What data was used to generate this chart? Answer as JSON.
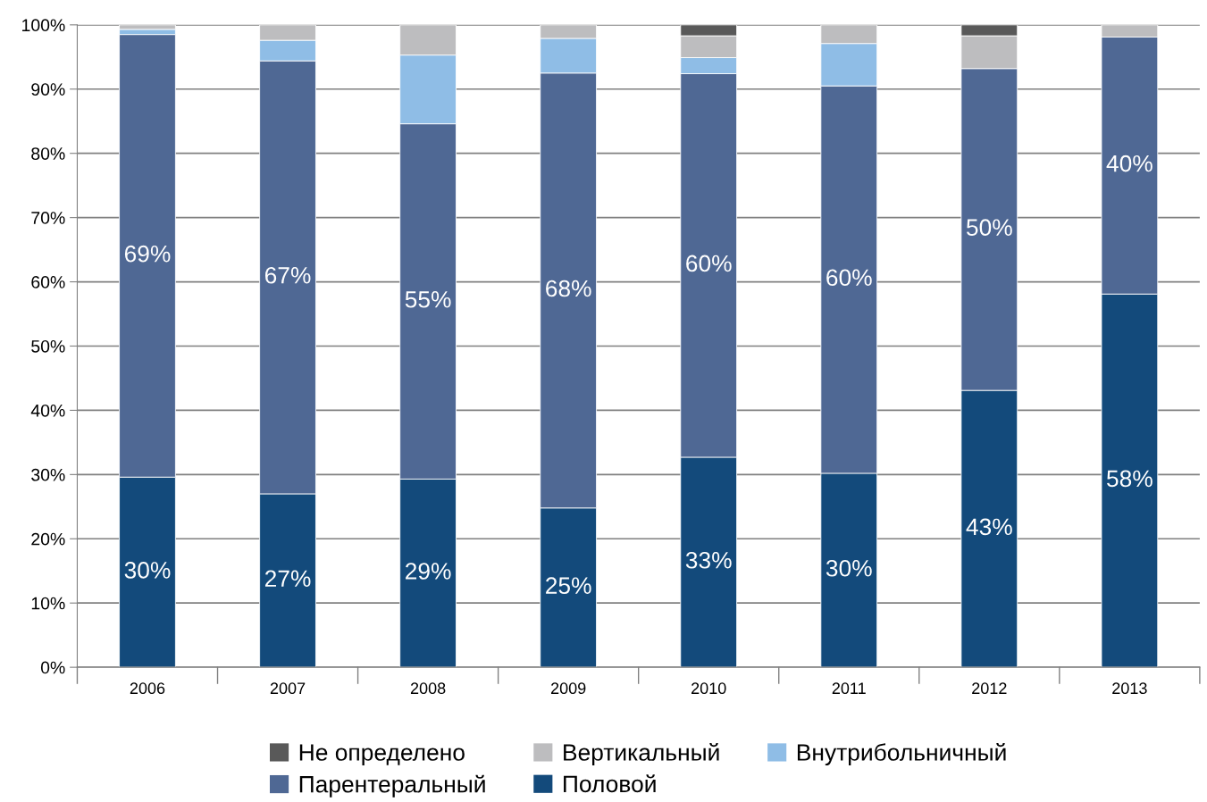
{
  "chart_data": {
    "type": "bar",
    "stacked": true,
    "categories": [
      "2006",
      "2007",
      "2008",
      "2009",
      "2010",
      "2011",
      "2012",
      "2013"
    ],
    "series": [
      {
        "name": "Половой",
        "color": "#134a7b",
        "values": [
          29.6,
          27.0,
          29.3,
          24.8,
          32.7,
          30.2,
          43.1,
          58.1
        ],
        "value_labels": [
          "30%",
          "27%",
          "29%",
          "25%",
          "33%",
          "30%",
          "43%",
          "58%"
        ]
      },
      {
        "name": "Парентеральный",
        "color": "#4f6894",
        "values": [
          68.9,
          67.4,
          55.3,
          67.7,
          59.7,
          60.3,
          50.1,
          40.0
        ],
        "value_labels": [
          "69%",
          "67%",
          "55%",
          "68%",
          "60%",
          "60%",
          "50%",
          "40%"
        ]
      },
      {
        "name": "Внутрибольничный",
        "color": "#8fbde6",
        "values": [
          0.8,
          3.2,
          10.7,
          5.4,
          2.5,
          6.6,
          null,
          null
        ]
      },
      {
        "name": "Вертикальный",
        "color": "#bdbdbf",
        "values": [
          0.7,
          2.4,
          4.7,
          2.1,
          3.4,
          2.9,
          5.1,
          1.9
        ]
      },
      {
        "name": "Не определено",
        "color": "#595959",
        "values": [
          null,
          null,
          null,
          null,
          1.7,
          null,
          1.7,
          null
        ]
      }
    ],
    "ylim": [
      0,
      100
    ],
    "yticks": [
      {
        "value": 0,
        "label": "0%"
      },
      {
        "value": 10,
        "label": "10%"
      },
      {
        "value": 20,
        "label": "20%"
      },
      {
        "value": 30,
        "label": "30%"
      },
      {
        "value": 40,
        "label": "40%"
      },
      {
        "value": 50,
        "label": "50%"
      },
      {
        "value": 60,
        "label": "60%"
      },
      {
        "value": 70,
        "label": "70%"
      },
      {
        "value": 80,
        "label": "80%"
      },
      {
        "value": 90,
        "label": "90%"
      },
      {
        "value": 100,
        "label": "100%"
      }
    ],
    "grid": "y",
    "legend": "bottom"
  }
}
